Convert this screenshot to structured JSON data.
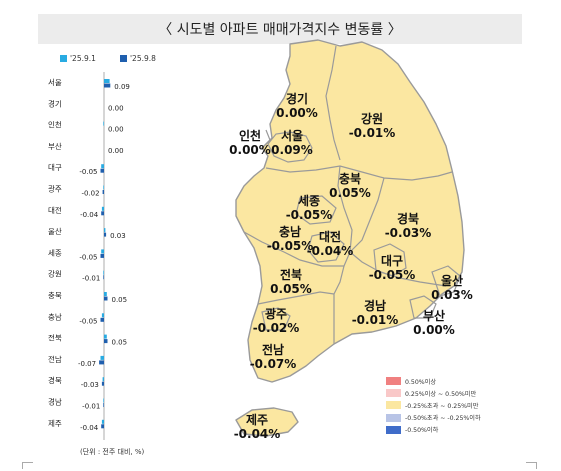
{
  "title": "〈 시도별 아파트 매매가격지수 변동률 〉",
  "legend": {
    "series1_label": "'25.9.1",
    "series2_label": "'25.9.8",
    "series1_color": "#29ABE2",
    "series2_color": "#1F5FAE"
  },
  "unit_note": "(단위 : 전주 대비, %)",
  "map_legend": [
    {
      "label": "0.50%이상",
      "color": "#F08080"
    },
    {
      "label": "0.25%이상 ~ 0.50%미만",
      "color": "#F9C8C8"
    },
    {
      "label": "-0.25%초과 ~ 0.25%미만",
      "color": "#FBE7A1"
    },
    {
      "label": "-0.50%초과 ~ -0.25%이하",
      "color": "#B8C4E6"
    },
    {
      "label": "-0.50%이하",
      "color": "#3F6CC9"
    }
  ],
  "map_labels": [
    {
      "region": "경기",
      "value": "0.00%"
    },
    {
      "region": "강원",
      "value": "-0.01%"
    },
    {
      "region": "인천",
      "value": "0.00%"
    },
    {
      "region": "서울",
      "value": "0.09%"
    },
    {
      "region": "충북",
      "value": "0.05%"
    },
    {
      "region": "세종",
      "value": "-0.05%"
    },
    {
      "region": "경북",
      "value": "-0.03%"
    },
    {
      "region": "충남",
      "value": "-0.05%"
    },
    {
      "region": "대전",
      "value": "-0.04%"
    },
    {
      "region": "대구",
      "value": "-0.05%"
    },
    {
      "region": "울산",
      "value": "0.03%"
    },
    {
      "region": "전북",
      "value": "0.05%"
    },
    {
      "region": "경남",
      "value": "-0.01%"
    },
    {
      "region": "부산",
      "value": "0.00%"
    },
    {
      "region": "광주",
      "value": "-0.02%"
    },
    {
      "region": "전남",
      "value": "-0.07%"
    },
    {
      "region": "제주",
      "value": "-0.04%"
    }
  ],
  "chart_data": {
    "type": "bar",
    "orientation": "horizontal",
    "categories": [
      "서울",
      "경기",
      "인천",
      "부산",
      "대구",
      "광주",
      "대전",
      "울산",
      "세종",
      "강원",
      "충북",
      "충남",
      "전북",
      "전남",
      "경북",
      "경남",
      "제주"
    ],
    "series": [
      {
        "name": "'25.9.1",
        "values": [
          0.08,
          0.0,
          -0.01,
          0.0,
          -0.04,
          -0.01,
          -0.03,
          0.02,
          -0.04,
          -0.01,
          0.04,
          -0.03,
          0.04,
          -0.05,
          -0.02,
          -0.01,
          -0.03
        ]
      },
      {
        "name": "'25.9.8",
        "values": [
          0.09,
          0.0,
          0.0,
          0.0,
          -0.05,
          -0.02,
          -0.04,
          0.03,
          -0.05,
          -0.01,
          0.05,
          -0.05,
          0.05,
          -0.07,
          -0.03,
          -0.01,
          -0.04
        ]
      }
    ],
    "data_labels": [
      "0.09",
      "0.00",
      "0.00",
      "0.00",
      "-0.05",
      "-0.02",
      "-0.04",
      "0.03",
      "-0.05",
      "-0.01",
      "0.05",
      "-0.05",
      "0.05",
      "-0.07",
      "-0.03",
      "-0.01",
      "-0.04"
    ],
    "unit": "%"
  }
}
